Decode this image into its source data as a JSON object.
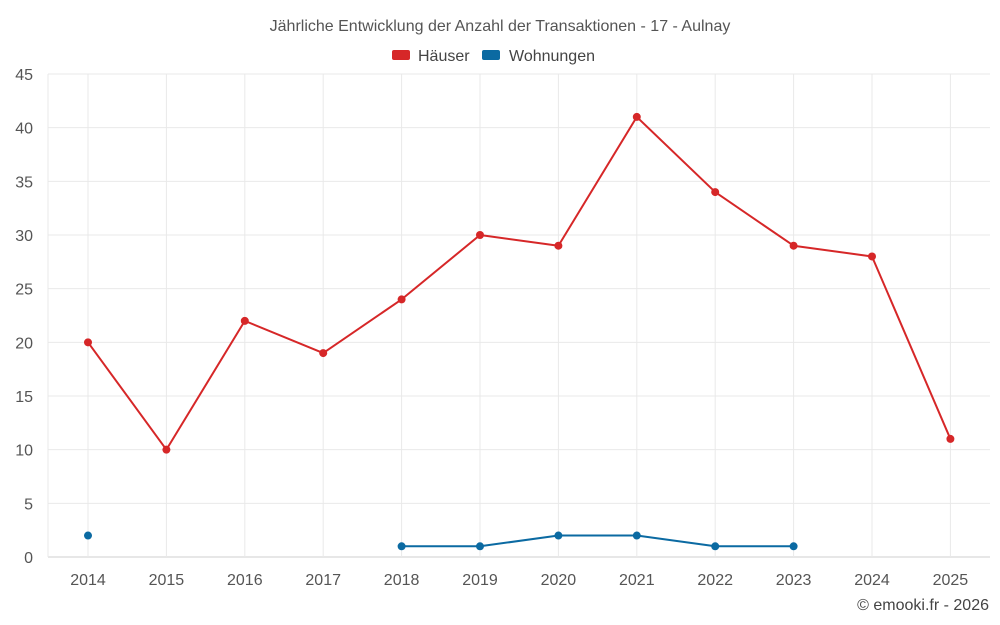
{
  "chart_data": {
    "type": "line",
    "title": "Jährliche Entwicklung der Anzahl der Transaktionen - 17 - Aulnay",
    "categories": [
      "2014",
      "2015",
      "2016",
      "2017",
      "2018",
      "2019",
      "2020",
      "2021",
      "2022",
      "2023",
      "2024",
      "2025"
    ],
    "series": [
      {
        "name": "Häuser",
        "color": "#d62728",
        "values": [
          20,
          10,
          22,
          19,
          24,
          30,
          29,
          41,
          34,
          29,
          28,
          11
        ]
      },
      {
        "name": "Wohnungen",
        "color": "#0b6aa2",
        "values": [
          2,
          null,
          null,
          null,
          1,
          1,
          2,
          2,
          1,
          1,
          null,
          null
        ]
      }
    ],
    "ylim": [
      0,
      45
    ],
    "yticks": [
      0,
      5,
      10,
      15,
      20,
      25,
      30,
      35,
      40,
      45
    ],
    "grid": true,
    "legend_position": "top-center",
    "xlabel": "",
    "ylabel": ""
  },
  "credit": "© emooki.fr - 2026"
}
